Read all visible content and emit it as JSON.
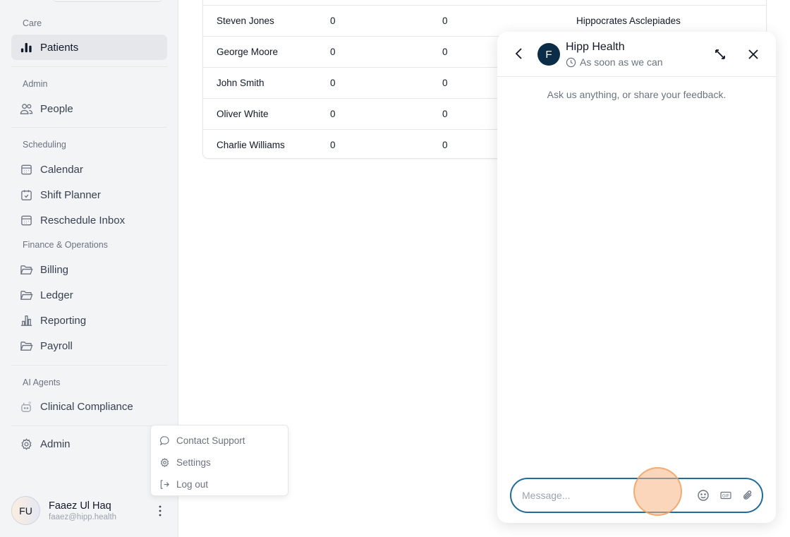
{
  "sidebar": {
    "sections": {
      "care": "Care",
      "admin": "Admin",
      "scheduling": "Scheduling",
      "finance": "Finance & Operations",
      "ai": "AI Agents"
    },
    "items": {
      "patients": "Patients",
      "people": "People",
      "calendar": "Calendar",
      "shift_planner": "Shift Planner",
      "reschedule_inbox": "Reschedule Inbox",
      "billing": "Billing",
      "ledger": "Ledger",
      "reporting": "Reporting",
      "payroll": "Payroll",
      "clinical_compliance": "Clinical Compliance",
      "admin": "Admin"
    },
    "active": "Patients",
    "user": {
      "initials": "FU",
      "name": "Faaez Ul Haq",
      "email": "faaez@hipp.health"
    }
  },
  "user_menu": {
    "items": [
      "Contact Support",
      "Settings",
      "Log out"
    ]
  },
  "table": {
    "rows": [
      [
        "Steven Jones",
        "0",
        "0",
        "Hippocrates Asclepiades"
      ],
      [
        "George Moore",
        "0",
        "0",
        ""
      ],
      [
        "John Smith",
        "0",
        "0",
        ""
      ],
      [
        "Oliver White",
        "0",
        "0",
        ""
      ],
      [
        "Charlie Williams",
        "0",
        "0",
        ""
      ]
    ]
  },
  "chat": {
    "avatar_initial": "F",
    "title": "Hipp Health",
    "subtitle": "As soon as we can",
    "hint": "Ask us anything, or share your feedback.",
    "input_placeholder": "Message...",
    "accent": "#1f6b99",
    "avatar_color": "#0c2d48"
  }
}
